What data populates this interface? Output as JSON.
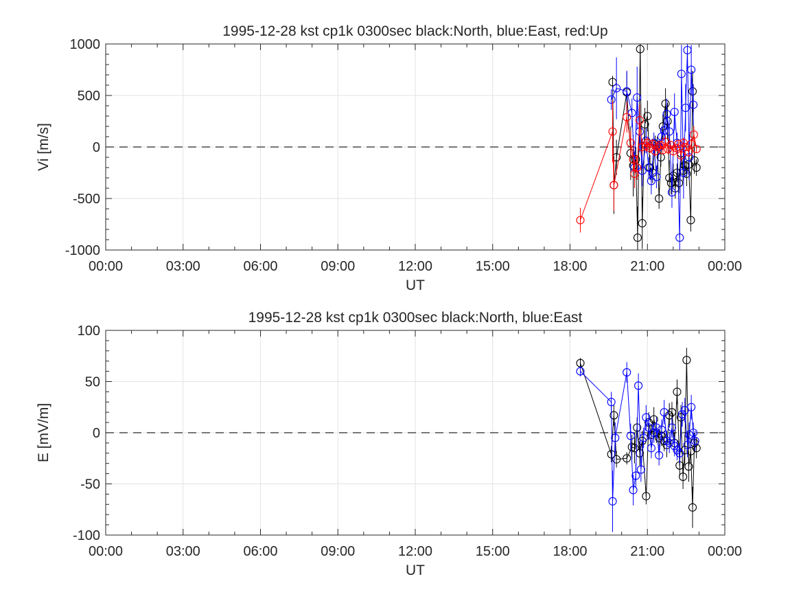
{
  "chart_data": [
    {
      "type": "line",
      "title": "1995-12-28 kst cp1k 0300sec black:North, blue:East, red:Up",
      "xlabel": "UT",
      "ylabel": "Vi [m/s]",
      "x_ticks": [
        "00:00",
        "03:00",
        "06:00",
        "09:00",
        "12:00",
        "15:00",
        "18:00",
        "21:00",
        "00:00"
      ],
      "y_ticks": [
        "1000",
        "500",
        "0",
        "-500",
        "-1000"
      ],
      "xlim": [
        0,
        24
      ],
      "ylim": [
        -1000,
        1000
      ],
      "grid": true,
      "zero_line": 0,
      "series": [
        {
          "name": "North",
          "color": "#000000",
          "x": [
            19.65,
            19.7,
            19.8,
            20.2,
            20.35,
            20.45,
            20.55,
            20.62,
            20.72,
            20.8,
            20.9,
            21.0,
            21.1,
            21.2,
            21.3,
            21.38,
            21.45,
            21.52,
            21.6,
            21.7,
            21.78,
            21.85,
            21.92,
            22.0,
            22.08,
            22.15,
            22.22,
            22.3,
            22.38,
            22.45,
            22.52,
            22.6,
            22.68,
            22.75,
            22.82,
            22.9
          ],
          "y": [
            630,
            -370,
            -100,
            530,
            -60,
            -180,
            -120,
            -880,
            950,
            -740,
            220,
            300,
            -200,
            -250,
            30,
            20,
            -500,
            -100,
            200,
            420,
            250,
            -300,
            -350,
            -280,
            -400,
            -250,
            -350,
            -60,
            -230,
            -180,
            -260,
            -170,
            -710,
            540,
            -130,
            -200
          ],
          "err": [
            60,
            280,
            170,
            200,
            260,
            300,
            120,
            300,
            200,
            250,
            160,
            150,
            120,
            100,
            80,
            80,
            100,
            90,
            120,
            150,
            180,
            170,
            110,
            120,
            100,
            90,
            100,
            120,
            100,
            110,
            120,
            100,
            110,
            200,
            130,
            80
          ]
        },
        {
          "name": "East",
          "color": "#0000ff",
          "x": [
            19.6,
            19.8,
            20.2,
            20.4,
            20.5,
            20.6,
            20.7,
            20.8,
            20.95,
            21.05,
            21.15,
            21.25,
            21.35,
            21.45,
            21.55,
            21.65,
            21.75,
            21.85,
            21.95,
            22.05,
            22.15,
            22.25,
            22.32,
            22.4,
            22.48,
            22.55,
            22.62,
            22.7,
            22.78
          ],
          "y": [
            460,
            570,
            540,
            330,
            -200,
            480,
            150,
            -230,
            60,
            -200,
            -330,
            40,
            -290,
            0,
            100,
            160,
            320,
            150,
            -440,
            340,
            40,
            -880,
            710,
            -250,
            380,
            940,
            -100,
            750,
            410
          ],
          "err": [
            100,
            300,
            200,
            140,
            130,
            300,
            200,
            150,
            120,
            100,
            130,
            100,
            110,
            80,
            100,
            120,
            150,
            120,
            150,
            180,
            100,
            120,
            280,
            250,
            230,
            200,
            220,
            240,
            200
          ]
        },
        {
          "name": "Up",
          "color": "#ff0000",
          "x": [
            18.4,
            19.65,
            19.7,
            20.2,
            20.35,
            20.45,
            20.5,
            20.6,
            20.7,
            20.8,
            20.95,
            21.0,
            21.1,
            21.2,
            21.3,
            21.4,
            21.5,
            21.6,
            21.7,
            21.8,
            21.9,
            22.0,
            22.1,
            22.2,
            22.3,
            22.4,
            22.5,
            22.6,
            22.7,
            22.8,
            22.9
          ],
          "y": [
            -710,
            150,
            -370,
            290,
            40,
            -120,
            -260,
            -200,
            260,
            0,
            10,
            40,
            -10,
            30,
            -40,
            0,
            20,
            -30,
            50,
            -20,
            20,
            -40,
            -10,
            30,
            -80,
            40,
            0,
            -50,
            30,
            120,
            -20
          ],
          "err": [
            120,
            300,
            250,
            150,
            120,
            120,
            140,
            120,
            150,
            80,
            60,
            60,
            50,
            50,
            50,
            40,
            40,
            40,
            60,
            50,
            40,
            50,
            40,
            40,
            60,
            50,
            40,
            50,
            50,
            80,
            40
          ]
        }
      ]
    },
    {
      "type": "line",
      "title": "1995-12-28 kst cp1k 0300sec black:North, blue:East",
      "xlabel": "UT",
      "ylabel": "E [mV/m]",
      "x_ticks": [
        "00:00",
        "03:00",
        "06:00",
        "09:00",
        "12:00",
        "15:00",
        "18:00",
        "21:00",
        "00:00"
      ],
      "y_ticks": [
        "100",
        "50",
        "0",
        "-50",
        "-100"
      ],
      "xlim": [
        0,
        24
      ],
      "ylim": [
        -100,
        100
      ],
      "grid": true,
      "zero_line": 0,
      "series": [
        {
          "name": "North",
          "color": "#000000",
          "x": [
            18.4,
            19.6,
            19.7,
            19.8,
            20.2,
            20.4,
            20.5,
            20.6,
            20.7,
            20.8,
            20.95,
            21.05,
            21.15,
            21.25,
            21.35,
            21.45,
            21.55,
            21.65,
            21.75,
            21.85,
            21.95,
            22.05,
            22.15,
            22.25,
            22.3,
            22.38,
            22.45,
            22.52,
            22.6,
            22.68,
            22.75,
            22.82,
            22.9
          ],
          "y": [
            68,
            -21,
            17,
            -26,
            -25,
            -14,
            -15,
            5,
            -20,
            -8,
            -62,
            10,
            -2,
            13,
            0,
            -5,
            -3,
            -8,
            -12,
            17,
            20,
            -10,
            40,
            -32,
            15,
            -43,
            -17,
            71,
            -33,
            -18,
            -73,
            -10,
            -15
          ],
          "err": [
            5,
            8,
            10,
            8,
            6,
            12,
            15,
            10,
            12,
            10,
            8,
            10,
            10,
            12,
            10,
            8,
            10,
            10,
            12,
            12,
            10,
            10,
            12,
            10,
            12,
            12,
            15,
            12,
            15,
            12,
            20,
            10,
            10
          ]
        },
        {
          "name": "East",
          "color": "#0000ff",
          "x": [
            18.4,
            19.6,
            19.65,
            19.75,
            20.2,
            20.35,
            20.45,
            20.55,
            20.65,
            20.75,
            20.85,
            20.95,
            21.05,
            21.15,
            21.25,
            21.35,
            21.45,
            21.55,
            21.65,
            21.75,
            21.85,
            21.95,
            22.05,
            22.15,
            22.25,
            22.35,
            22.45,
            22.55,
            22.62,
            22.7,
            22.78,
            22.85
          ],
          "y": [
            60,
            30,
            -67,
            -5,
            59,
            -3,
            -56,
            -42,
            46,
            -36,
            -5,
            15,
            5,
            -15,
            0,
            5,
            -22,
            3,
            20,
            -8,
            -10,
            5,
            -13,
            -17,
            -20,
            18,
            22,
            -12,
            -2,
            25,
            0,
            -8
          ],
          "err": [
            5,
            10,
            30,
            15,
            10,
            12,
            15,
            12,
            12,
            12,
            10,
            12,
            12,
            10,
            10,
            10,
            10,
            10,
            12,
            10,
            10,
            10,
            10,
            10,
            10,
            12,
            12,
            12,
            12,
            12,
            10,
            10
          ]
        }
      ]
    }
  ]
}
